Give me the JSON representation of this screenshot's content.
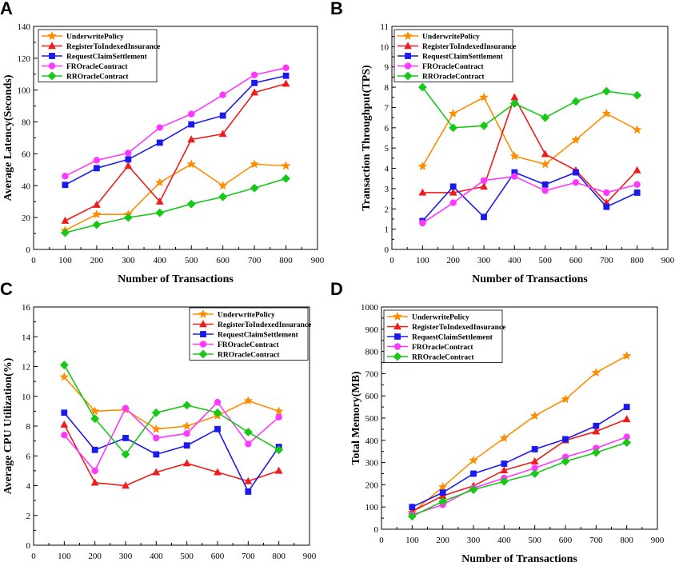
{
  "colors": {
    "UnderwritePolicy": "#ff8c00",
    "RegisterToIndexedInsurance": "#ee1c1c",
    "RequestClaimSettlement": "#1a1aee",
    "FROracleContract": "#ff38ff",
    "RROracleContract": "#17c817"
  },
  "markers": {
    "UnderwritePolicy": "star",
    "RegisterToIndexedInsurance": "triangle",
    "RequestClaimSettlement": "square",
    "FROracleContract": "circle",
    "RROracleContract": "diamond"
  },
  "chart_data": [
    {
      "panel": "A",
      "type": "line",
      "xlabel": "Number of Transactions",
      "ylabel": "Average Latency(Seconds)",
      "xlim": [
        0,
        900
      ],
      "ylim": [
        0,
        140
      ],
      "xticks": [
        0,
        100,
        200,
        300,
        400,
        500,
        600,
        700,
        800,
        900
      ],
      "yticks": [
        0,
        20,
        40,
        60,
        80,
        100,
        120,
        140
      ],
      "legend_position": "top-left",
      "x": [
        100,
        200,
        300,
        400,
        500,
        600,
        700,
        800
      ],
      "series": [
        {
          "name": "UnderwritePolicy",
          "values": [
            12,
            22,
            22,
            42,
            53.5,
            40,
            53.5,
            52.5
          ]
        },
        {
          "name": "RegisterToIndexedInsurance",
          "values": [
            18,
            28,
            52.5,
            30,
            69,
            72.5,
            98.5,
            104
          ]
        },
        {
          "name": "RequestClaimSettlement",
          "values": [
            40.5,
            51,
            56.5,
            67,
            78.5,
            84,
            104.5,
            109
          ]
        },
        {
          "name": "FROracleContract",
          "values": [
            46,
            56,
            60.5,
            76.5,
            85,
            97,
            109.5,
            114
          ]
        },
        {
          "name": "RROracleContract",
          "values": [
            10.5,
            15.5,
            20,
            23,
            28.5,
            33,
            38.5,
            44.5
          ]
        }
      ]
    },
    {
      "panel": "B",
      "type": "line",
      "xlabel": "Number of Transactions",
      "ylabel": "Transaction Throughput(TPS)",
      "xlim": [
        0,
        900
      ],
      "ylim": [
        0,
        11
      ],
      "xticks": [
        0,
        100,
        200,
        300,
        400,
        500,
        600,
        700,
        800,
        900
      ],
      "yticks": [
        0,
        1,
        2,
        3,
        4,
        5,
        6,
        7,
        8,
        9,
        10,
        11
      ],
      "legend_position": "top-right",
      "x": [
        100,
        200,
        300,
        400,
        500,
        600,
        700,
        800
      ],
      "series": [
        {
          "name": "UnderwritePolicy",
          "values": [
            4.1,
            6.7,
            7.5,
            4.6,
            4.2,
            5.4,
            6.7,
            5.9
          ]
        },
        {
          "name": "RegisterToIndexedInsurance",
          "values": [
            2.8,
            2.8,
            3.1,
            7.5,
            4.7,
            3.9,
            2.3,
            3.9
          ]
        },
        {
          "name": "RequestClaimSettlement",
          "values": [
            1.4,
            3.1,
            1.6,
            3.8,
            3.2,
            3.8,
            2.1,
            2.8
          ]
        },
        {
          "name": "FROracleContract",
          "values": [
            1.3,
            2.3,
            3.4,
            3.6,
            2.9,
            3.3,
            2.8,
            3.2
          ]
        },
        {
          "name": "RROracleContract",
          "values": [
            8.0,
            6.0,
            6.1,
            7.2,
            6.5,
            7.3,
            7.8,
            7.6
          ]
        }
      ]
    },
    {
      "panel": "C",
      "type": "line",
      "xlabel": "Number of Transactions",
      "ylabel": "Average CPU Utilization(%)",
      "xlim": [
        0,
        900
      ],
      "ylim": [
        0,
        16
      ],
      "xticks": [
        0,
        100,
        200,
        300,
        400,
        500,
        600,
        700,
        800,
        900
      ],
      "yticks": [
        0,
        2,
        4,
        6,
        8,
        10,
        12,
        14,
        16
      ],
      "legend_position": "top-right",
      "x": [
        100,
        200,
        300,
        400,
        500,
        600,
        700,
        800
      ],
      "series": [
        {
          "name": "UnderwritePolicy",
          "values": [
            11.3,
            9.0,
            9.1,
            7.8,
            8.0,
            8.7,
            9.7,
            9.0
          ]
        },
        {
          "name": "RegisterToIndexedInsurance",
          "values": [
            8.1,
            4.2,
            4.0,
            4.9,
            5.5,
            4.9,
            4.3,
            5.0
          ]
        },
        {
          "name": "RequestClaimSettlement",
          "values": [
            8.9,
            6.4,
            7.2,
            6.1,
            6.7,
            7.8,
            3.6,
            6.6
          ]
        },
        {
          "name": "FROracleContract",
          "values": [
            7.4,
            5.0,
            9.2,
            7.2,
            7.5,
            9.6,
            6.8,
            8.6
          ]
        },
        {
          "name": "RROracleContract",
          "values": [
            12.1,
            8.5,
            6.1,
            8.9,
            9.4,
            8.9,
            7.6,
            6.4
          ]
        }
      ]
    },
    {
      "panel": "D",
      "type": "line",
      "xlabel": "Number of Transactions",
      "ylabel": "Total Memory(MB)",
      "xlim": [
        0,
        900
      ],
      "ylim": [
        0,
        1000
      ],
      "xticks": [
        0,
        100,
        200,
        300,
        400,
        500,
        600,
        700,
        800,
        900
      ],
      "yticks": [
        0,
        100,
        200,
        300,
        400,
        500,
        600,
        700,
        800,
        900,
        1000
      ],
      "legend_position": "top-left",
      "x": [
        100,
        200,
        300,
        400,
        500,
        600,
        700,
        800
      ],
      "series": [
        {
          "name": "UnderwritePolicy",
          "values": [
            75,
            190,
            310,
            410,
            510,
            585,
            705,
            780
          ]
        },
        {
          "name": "RegisterToIndexedInsurance",
          "values": [
            80,
            150,
            195,
            265,
            305,
            400,
            440,
            495
          ]
        },
        {
          "name": "RequestClaimSettlement",
          "values": [
            100,
            165,
            250,
            295,
            360,
            405,
            465,
            550
          ]
        },
        {
          "name": "FROracleContract",
          "values": [
            65,
            110,
            185,
            230,
            275,
            325,
            365,
            415
          ]
        },
        {
          "name": "RROracleContract",
          "values": [
            58,
            125,
            178,
            215,
            250,
            305,
            345,
            390
          ]
        }
      ]
    }
  ]
}
